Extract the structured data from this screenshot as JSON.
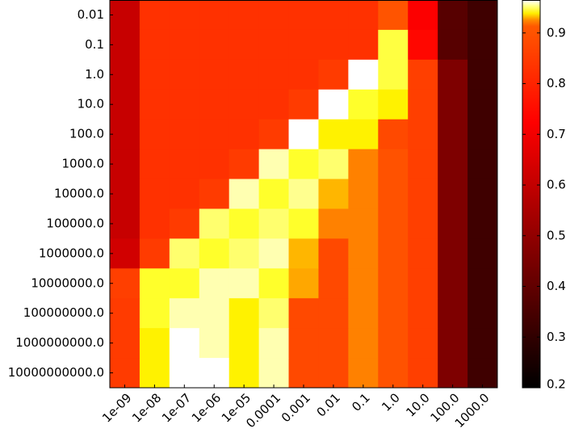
{
  "chart_data": {
    "type": "heatmap",
    "colormap": "hot",
    "color_midpoint": 0.92,
    "x_categories": [
      "1e-09",
      "1e-08",
      "1e-07",
      "1e-06",
      "1e-05",
      "0.0001",
      "0.001",
      "0.01",
      "0.1",
      "1.0",
      "10.0",
      "100.0",
      "1000.0"
    ],
    "y_categories": [
      "0.01",
      "0.1",
      "1.0",
      "10.0",
      "100.0",
      "1000.0",
      "10000.0",
      "100000.0",
      "1000000.0",
      "10000000.0",
      "100000000.0",
      "1000000000.0",
      "10000000000.0"
    ],
    "z": [
      [
        0.61,
        0.83,
        0.83,
        0.83,
        0.83,
        0.83,
        0.83,
        0.83,
        0.83,
        0.905,
        0.72,
        0.38,
        0.33
      ],
      [
        0.61,
        0.83,
        0.83,
        0.83,
        0.83,
        0.83,
        0.83,
        0.83,
        0.83,
        0.948,
        0.74,
        0.38,
        0.33
      ],
      [
        0.61,
        0.83,
        0.83,
        0.83,
        0.83,
        0.83,
        0.83,
        0.85,
        0.965,
        0.948,
        0.86,
        0.46,
        0.33
      ],
      [
        0.61,
        0.83,
        0.83,
        0.83,
        0.83,
        0.83,
        0.85,
        0.965,
        0.946,
        0.94,
        0.86,
        0.46,
        0.33
      ],
      [
        0.61,
        0.83,
        0.83,
        0.83,
        0.83,
        0.85,
        0.965,
        0.94,
        0.94,
        0.88,
        0.86,
        0.46,
        0.33
      ],
      [
        0.61,
        0.83,
        0.83,
        0.83,
        0.85,
        0.958,
        0.946,
        0.952,
        0.925,
        0.9,
        0.86,
        0.46,
        0.33
      ],
      [
        0.61,
        0.83,
        0.83,
        0.85,
        0.958,
        0.946,
        0.955,
        0.932,
        0.925,
        0.9,
        0.86,
        0.46,
        0.33
      ],
      [
        0.61,
        0.83,
        0.85,
        0.952,
        0.946,
        0.952,
        0.946,
        0.925,
        0.925,
        0.9,
        0.86,
        0.46,
        0.33
      ],
      [
        0.63,
        0.85,
        0.952,
        0.946,
        0.952,
        0.958,
        0.932,
        0.88,
        0.925,
        0.9,
        0.86,
        0.46,
        0.33
      ],
      [
        0.86,
        0.946,
        0.946,
        0.958,
        0.958,
        0.946,
        0.93,
        0.88,
        0.925,
        0.9,
        0.86,
        0.46,
        0.33
      ],
      [
        0.85,
        0.946,
        0.958,
        0.958,
        0.94,
        0.952,
        0.88,
        0.88,
        0.925,
        0.9,
        0.86,
        0.46,
        0.33
      ],
      [
        0.85,
        0.94,
        0.965,
        0.958,
        0.94,
        0.958,
        0.88,
        0.88,
        0.925,
        0.9,
        0.86,
        0.46,
        0.33
      ],
      [
        0.85,
        0.94,
        0.965,
        0.965,
        0.94,
        0.958,
        0.88,
        0.88,
        0.925,
        0.9,
        0.86,
        0.46,
        0.33
      ]
    ],
    "zlim": [
      0.2,
      0.965
    ],
    "zticks": [
      0.2,
      0.3,
      0.4,
      0.5,
      0.6,
      0.7,
      0.8,
      0.9
    ]
  }
}
